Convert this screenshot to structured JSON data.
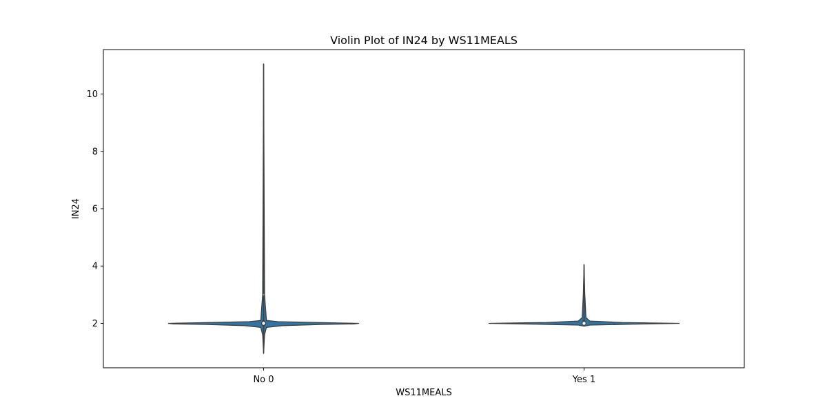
{
  "chart_data": {
    "type": "violin",
    "title": "Violin Plot of IN24 by WS11MEALS",
    "xlabel": "WS11MEALS",
    "ylabel": "IN24",
    "categories": [
      "No 0",
      "Yes 1"
    ],
    "ylim": [
      0.45,
      11.55
    ],
    "yticks": [
      2,
      4,
      6,
      8,
      10
    ],
    "grid": false,
    "legend": "none",
    "colors": {
      "fill": "#3274a1",
      "edge": "#3f3f3f",
      "frame": "#000000"
    },
    "groups": [
      {
        "category": "No 0",
        "min": 0.95,
        "max": 11.05,
        "q1": 1.95,
        "median": 2.0,
        "q3": 2.05,
        "whisker_low": 1.9,
        "whisker_high": 2.1,
        "outlier_mark": 3.0,
        "density_profile": [
          {
            "y": 0.95,
            "w": 0.0
          },
          {
            "y": 1.6,
            "w": 0.01
          },
          {
            "y": 1.86,
            "w": 0.03
          },
          {
            "y": 1.92,
            "w": 0.2
          },
          {
            "y": 1.96,
            "w": 0.6
          },
          {
            "y": 1.98,
            "w": 0.95
          },
          {
            "y": 2.0,
            "w": 1.0
          },
          {
            "y": 2.02,
            "w": 0.7
          },
          {
            "y": 2.06,
            "w": 0.15
          },
          {
            "y": 2.1,
            "w": 0.03
          },
          {
            "y": 3.0,
            "w": 0.01
          },
          {
            "y": 6.0,
            "w": 0.006
          },
          {
            "y": 11.05,
            "w": 0.0
          }
        ]
      },
      {
        "category": "Yes 1",
        "min": 1.9,
        "max": 4.05,
        "q1": 1.97,
        "median": 2.0,
        "q3": 2.03,
        "whisker_low": 1.95,
        "whisker_high": 2.1,
        "outlier_mark": null,
        "density_profile": [
          {
            "y": 1.9,
            "w": 0.0
          },
          {
            "y": 1.94,
            "w": 0.06
          },
          {
            "y": 1.97,
            "w": 0.5
          },
          {
            "y": 2.0,
            "w": 1.0
          },
          {
            "y": 2.03,
            "w": 0.4
          },
          {
            "y": 2.08,
            "w": 0.06
          },
          {
            "y": 2.2,
            "w": 0.02
          },
          {
            "y": 3.0,
            "w": 0.008
          },
          {
            "y": 4.05,
            "w": 0.0
          }
        ]
      }
    ]
  }
}
